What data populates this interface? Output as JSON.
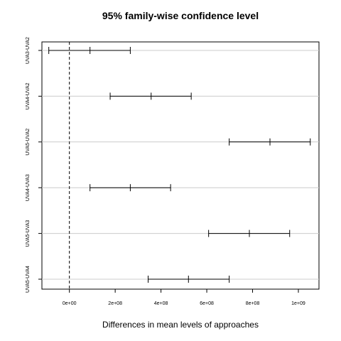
{
  "chart_data": {
    "type": "interval",
    "title": "95% family-wise confidence level",
    "xlabel": "Differences in mean levels of approaches",
    "ylabel": "",
    "xlim": [
      -120000000,
      1090000000
    ],
    "xticks": [
      0,
      200000000,
      400000000,
      600000000,
      800000000,
      1000000000
    ],
    "xtick_labels": [
      "0e+00",
      "2e+08",
      "4e+08",
      "6e+08",
      "8e+08",
      "1e+09"
    ],
    "reference_line": 0,
    "grid": "horizontal",
    "categories": [
      "UVA3-UVA2",
      "UVA4-UVA2",
      "UVA5-UVA2",
      "UVA4-UVA3",
      "UVA5-UVA3",
      "UVA5-UVA4"
    ],
    "estimates": [
      90000000,
      357000000,
      876000000,
      266000000,
      786000000,
      520000000
    ],
    "lower": [
      -90000000,
      178000000,
      698000000,
      90000000,
      608000000,
      344000000
    ],
    "upper": [
      266000000,
      532000000,
      1052000000,
      442000000,
      962000000,
      698000000
    ]
  }
}
